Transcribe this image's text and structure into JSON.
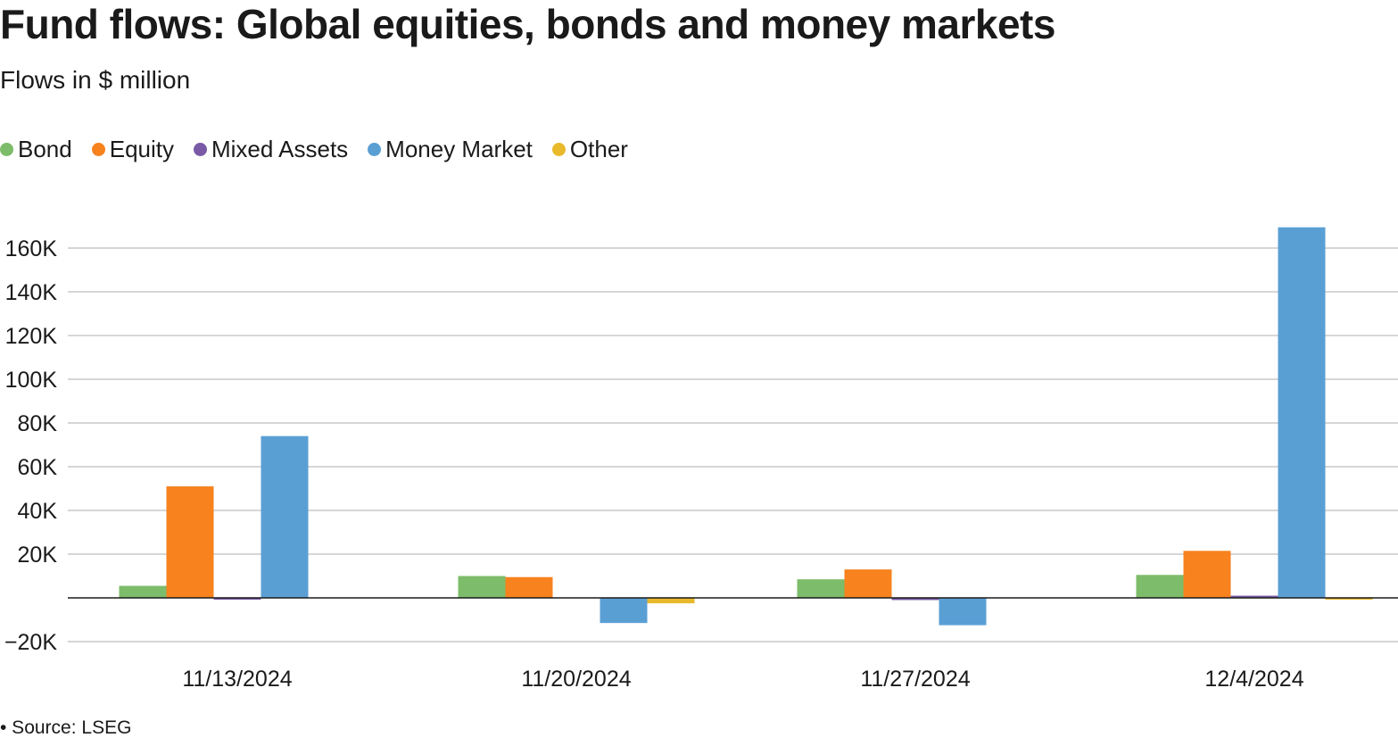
{
  "title": "Fund flows: Global equities, bonds and money markets",
  "subtitle": "Flows in $ million",
  "source": "• Source: LSEG",
  "chart_data": {
    "type": "bar",
    "categories": [
      "11/13/2024",
      "11/20/2024",
      "11/27/2024",
      "12/4/2024"
    ],
    "series": [
      {
        "name": "Bond",
        "color": "#7dbc6a",
        "values": [
          5500,
          10000,
          8500,
          10500
        ]
      },
      {
        "name": "Equity",
        "color": "#f7821e",
        "values": [
          51000,
          9500,
          13000,
          21500
        ]
      },
      {
        "name": "Mixed Assets",
        "color": "#7a5aa6",
        "values": [
          -700,
          0,
          -1000,
          1000
        ]
      },
      {
        "name": "Money Market",
        "color": "#5a9fd4",
        "values": [
          74000,
          -11500,
          -12500,
          169500
        ]
      },
      {
        "name": "Other",
        "color": "#e9b92c",
        "values": [
          0,
          -2500,
          0,
          -500
        ]
      }
    ],
    "ylim": [
      -20000,
      170000
    ],
    "yticks": [
      -20000,
      20000,
      40000,
      60000,
      80000,
      100000,
      120000,
      140000,
      160000
    ],
    "ytick_labels": [
      "−20K",
      "20K",
      "40K",
      "60K",
      "80K",
      "100K",
      "120K",
      "140K",
      "160K"
    ],
    "grid": true,
    "legend_position": "top-left"
  }
}
